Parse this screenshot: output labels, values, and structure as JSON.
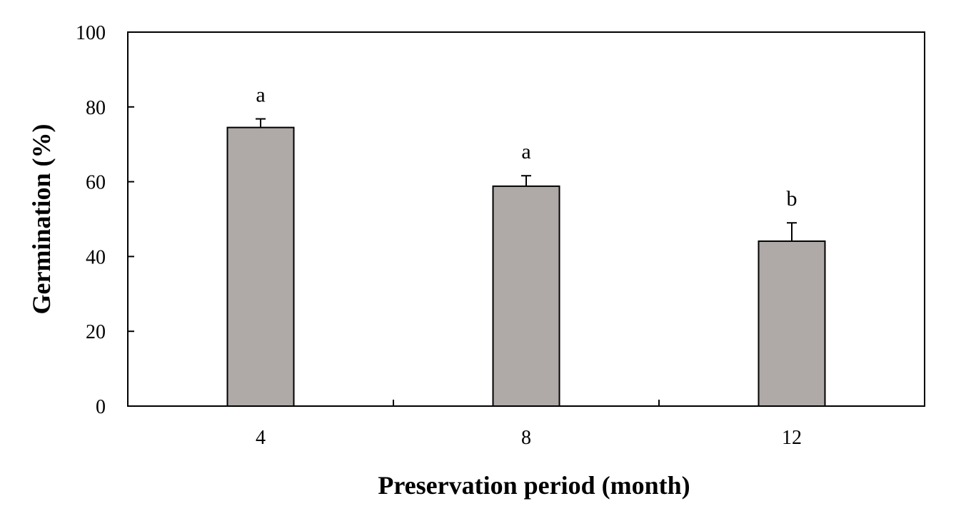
{
  "chart_data": {
    "type": "bar",
    "title": "",
    "xlabel": "Preservation period (month)",
    "ylabel": "Germination (%)",
    "categories": [
      "4",
      "8",
      "12"
    ],
    "series": [
      {
        "values": [
          74.5,
          58.8,
          44.1
        ],
        "errors": [
          2.3,
          2.8,
          4.9
        ],
        "significance_letters": [
          "a",
          "a",
          "b"
        ]
      }
    ],
    "ylim": [
      0,
      100
    ],
    "yticks": [
      0,
      20,
      40,
      60,
      80,
      100
    ],
    "grid": false,
    "legend": "none",
    "bar_color": "#afaaa8",
    "bar_edge_color": "#000000"
  }
}
